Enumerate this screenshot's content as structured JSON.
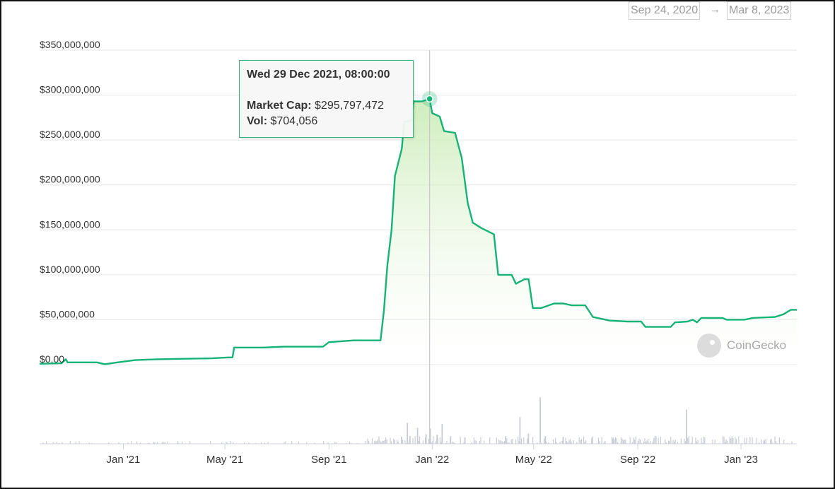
{
  "range": {
    "start": "Sep 24, 2020",
    "arrow": "→",
    "end": "Mar 8, 2023"
  },
  "tooltip": {
    "date": "Wed 29 Dec 2021, 08:00:00",
    "cap_label": "Market Cap:",
    "cap_value": "$295,797,472",
    "vol_label": "Vol:",
    "vol_value": "$704,056"
  },
  "watermark": "CoinGecko",
  "colors": {
    "line": "#16b377",
    "fill": "#d6f0c8",
    "grid": "#e6e6e6",
    "volume": "#c9ccd6",
    "crosshair": "#c8c8c8"
  },
  "chart_data": {
    "type": "area",
    "ylim": [
      0,
      350000000
    ],
    "y_ticks": [
      "$0.00",
      "$50,000,000",
      "$100,000,000",
      "$150,000,000",
      "$200,000,000",
      "$250,000,000",
      "$300,000,000",
      "$350,000,000"
    ],
    "y_tick_values": [
      0,
      50000000,
      100000000,
      150000000,
      200000000,
      250000000,
      300000000,
      350000000
    ],
    "x_range": [
      "2020-09-24",
      "2023-03-08"
    ],
    "x_ticks": [
      {
        "label": "Jan '21",
        "date": "2021-01-01"
      },
      {
        "label": "May '21",
        "date": "2021-05-01"
      },
      {
        "label": "Sep '21",
        "date": "2021-09-01"
      },
      {
        "label": "Jan '22",
        "date": "2022-01-01"
      },
      {
        "label": "May '22",
        "date": "2022-05-01"
      },
      {
        "label": "Sep '22",
        "date": "2022-09-01"
      },
      {
        "label": "Jan '23",
        "date": "2023-01-01"
      }
    ],
    "highlight": {
      "date": "2021-12-29",
      "market_cap": 295797472,
      "volume": 704056
    },
    "series": [
      {
        "name": "Market Cap",
        "points": [
          [
            "2020-09-24",
            1000000
          ],
          [
            "2020-10-20",
            1500000
          ],
          [
            "2020-10-25",
            6000000
          ],
          [
            "2020-10-27",
            2500000
          ],
          [
            "2020-12-01",
            2500000
          ],
          [
            "2020-12-10",
            500000
          ],
          [
            "2020-12-25",
            2500000
          ],
          [
            "2021-01-15",
            5000000
          ],
          [
            "2021-02-10",
            6000000
          ],
          [
            "2021-04-15",
            7000000
          ],
          [
            "2021-05-05",
            8000000
          ],
          [
            "2021-05-10",
            8000000
          ],
          [
            "2021-05-12",
            19000000
          ],
          [
            "2021-06-15",
            19000000
          ],
          [
            "2021-07-10",
            20000000
          ],
          [
            "2021-08-10",
            20000000
          ],
          [
            "2021-08-25",
            20000000
          ],
          [
            "2021-09-01",
            25000000
          ],
          [
            "2021-09-30",
            27000000
          ],
          [
            "2021-10-30",
            27000000
          ],
          [
            "2021-11-01",
            27000000
          ],
          [
            "2021-11-05",
            60000000
          ],
          [
            "2021-11-09",
            110000000
          ],
          [
            "2021-11-14",
            150000000
          ],
          [
            "2021-11-18",
            210000000
          ],
          [
            "2021-11-22",
            225000000
          ],
          [
            "2021-11-26",
            240000000
          ],
          [
            "2021-11-29",
            270000000
          ],
          [
            "2021-12-08",
            272000000
          ],
          [
            "2021-12-10",
            293000000
          ],
          [
            "2021-12-20",
            293000000
          ],
          [
            "2021-12-29",
            295797472
          ],
          [
            "2022-01-01",
            280000000
          ],
          [
            "2022-01-10",
            276000000
          ],
          [
            "2022-01-15",
            260000000
          ],
          [
            "2022-01-28",
            258000000
          ],
          [
            "2022-02-05",
            230000000
          ],
          [
            "2022-02-12",
            180000000
          ],
          [
            "2022-02-18",
            158000000
          ],
          [
            "2022-02-28",
            152000000
          ],
          [
            "2022-03-15",
            145000000
          ],
          [
            "2022-03-20",
            100000000
          ],
          [
            "2022-04-05",
            100000000
          ],
          [
            "2022-04-10",
            90000000
          ],
          [
            "2022-04-20",
            95000000
          ],
          [
            "2022-04-25",
            95000000
          ],
          [
            "2022-04-30",
            63000000
          ],
          [
            "2022-05-10",
            63000000
          ],
          [
            "2022-05-25",
            68000000
          ],
          [
            "2022-06-05",
            68000000
          ],
          [
            "2022-06-15",
            66000000
          ],
          [
            "2022-07-01",
            66000000
          ],
          [
            "2022-07-10",
            53000000
          ],
          [
            "2022-07-30",
            49000000
          ],
          [
            "2022-08-20",
            48000000
          ],
          [
            "2022-09-05",
            48000000
          ],
          [
            "2022-09-10",
            42000000
          ],
          [
            "2022-10-10",
            42000000
          ],
          [
            "2022-10-15",
            47000000
          ],
          [
            "2022-10-30",
            48000000
          ],
          [
            "2022-11-05",
            50000000
          ],
          [
            "2022-11-10",
            47000000
          ],
          [
            "2022-11-15",
            52000000
          ],
          [
            "2022-12-10",
            52000000
          ],
          [
            "2022-12-15",
            50000000
          ],
          [
            "2023-01-05",
            50000000
          ],
          [
            "2023-01-15",
            52000000
          ],
          [
            "2023-02-10",
            53000000
          ],
          [
            "2023-02-20",
            56000000
          ],
          [
            "2023-03-01",
            61000000
          ],
          [
            "2023-03-08",
            61000000
          ]
        ]
      },
      {
        "name": "Vol",
        "spikes": [
          [
            "2021-11-25",
            0.11
          ],
          [
            "2021-12-02",
            0.33
          ],
          [
            "2021-12-05",
            0.12
          ],
          [
            "2021-12-14",
            0.25
          ],
          [
            "2021-12-24",
            0.15
          ],
          [
            "2021-12-29",
            0.24
          ],
          [
            "2022-01-06",
            0.14
          ],
          [
            "2022-01-12",
            0.31
          ],
          [
            "2022-01-22",
            0.12
          ],
          [
            "2022-02-08",
            0.1
          ],
          [
            "2022-03-28",
            0.12
          ],
          [
            "2022-04-14",
            0.42
          ],
          [
            "2022-04-24",
            0.16
          ],
          [
            "2022-05-08",
            0.73
          ],
          [
            "2022-05-14",
            0.12
          ],
          [
            "2022-10-28",
            0.54
          ],
          [
            "2022-06-04",
            0.1
          ],
          [
            "2022-08-02",
            0.08
          ]
        ]
      }
    ]
  }
}
